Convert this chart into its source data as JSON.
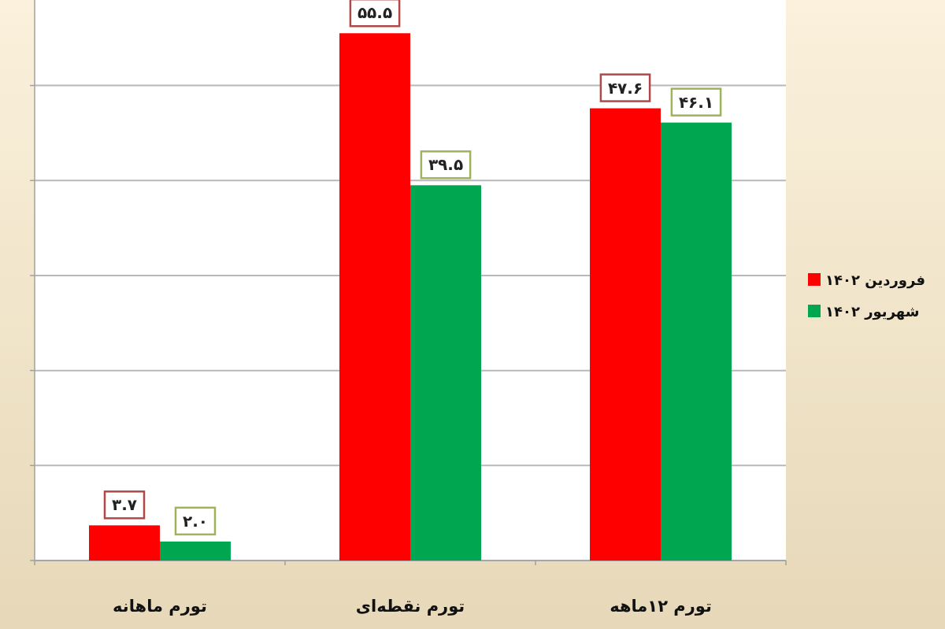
{
  "chart_data": {
    "type": "bar",
    "categories": [
      "تورم ماهانه",
      "تورم نقطه‌ای",
      "تورم ۱۲ماهه"
    ],
    "series": [
      {
        "name": "فروردین ۱۴۰۲",
        "color": "#ff0000",
        "values": [
          3.7,
          55.5,
          47.6
        ],
        "value_labels": [
          "۳.۷",
          "۵۵.۵",
          "۴۷.۶"
        ]
      },
      {
        "name": "شهریور ۱۴۰۲",
        "color": "#00a650",
        "values": [
          2.0,
          39.5,
          46.1
        ],
        "value_labels": [
          "۲.۰",
          "۳۹.۵",
          "۴۶.۱"
        ]
      }
    ],
    "ylim": [
      0,
      59
    ],
    "yticks": [
      {
        "value": 0,
        "label": null
      },
      {
        "value": 10,
        "label": null
      },
      {
        "value": 20,
        "label": null
      },
      {
        "value": 30,
        "label": null
      },
      {
        "value": 40,
        "label": null
      },
      {
        "value": 50,
        "label": null
      }
    ],
    "grid": "y",
    "legend": "right"
  }
}
